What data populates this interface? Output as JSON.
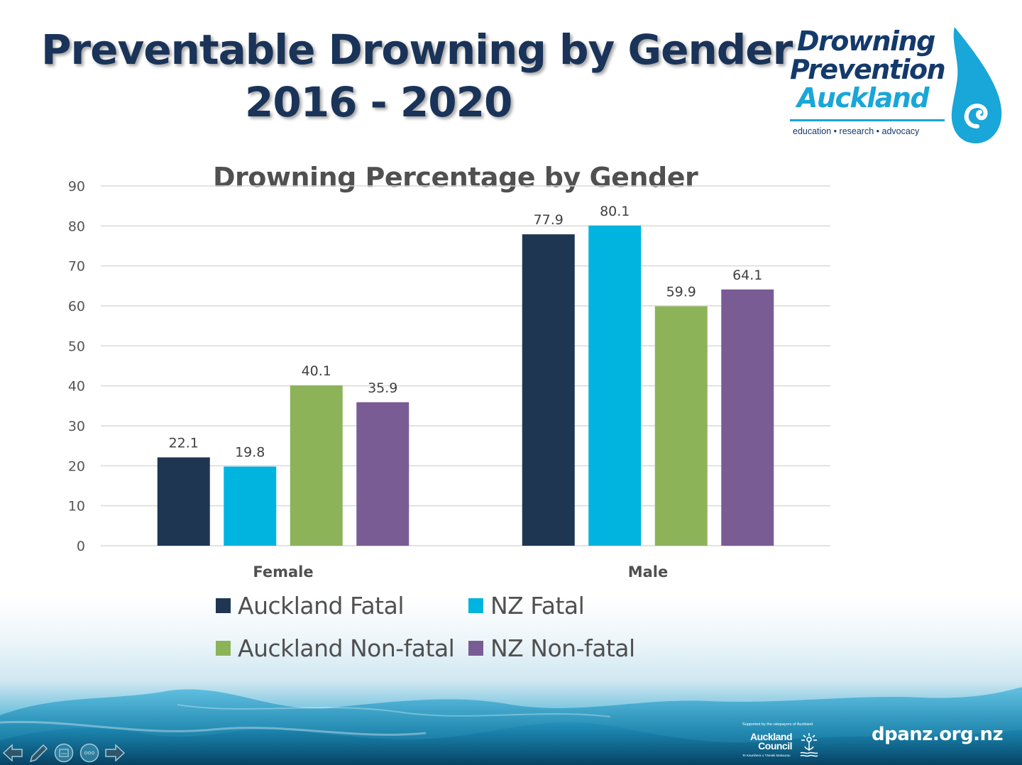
{
  "slide": {
    "title_line1": "Preventable Drowning by Gender",
    "title_line2": "2016 - 2020",
    "logo": {
      "line1": "Drowning",
      "line2": "Prevention",
      "line3": "Auckland",
      "tagline": "education • research • advocacy",
      "icon": "water-drop-icon"
    },
    "footer": {
      "council_support": "Supported by the ratepayers of Auckland",
      "council_name_1": "Auckland",
      "council_name_2": "Council",
      "council_sub": "Te Kaunihera o Tāmaki Makaurau",
      "url": "dpanz.org.nz"
    },
    "nav_controls": [
      {
        "name": "previous-slide",
        "icon": "arrow-left-icon"
      },
      {
        "name": "pen-tool",
        "icon": "pen-icon"
      },
      {
        "name": "slide-menu",
        "icon": "slides-icon"
      },
      {
        "name": "more-options",
        "icon": "ellipsis-icon"
      },
      {
        "name": "next-slide",
        "icon": "arrow-right-icon"
      }
    ]
  },
  "colors": {
    "title": "#1a3358",
    "auckland_fatal": "#1f3653",
    "nz_fatal": "#00b4e0",
    "auckland_nonfatal": "#8db359",
    "nz_nonfatal": "#7a5c95",
    "gridline": "#d9d9d9",
    "logo_dark": "#143a6b",
    "logo_light": "#19a6d8"
  },
  "chart_data": {
    "type": "bar",
    "title": "Drowning Percentage by Gender",
    "xlabel": "",
    "ylabel": "",
    "categories": [
      "Female",
      "Male"
    ],
    "series": [
      {
        "name": "Auckland Fatal",
        "color": "#1f3653",
        "values": [
          22.1,
          77.9
        ]
      },
      {
        "name": "NZ Fatal",
        "color": "#00b4e0",
        "values": [
          19.8,
          80.1
        ]
      },
      {
        "name": "Auckland Non-fatal",
        "color": "#8db359",
        "values": [
          40.1,
          59.9
        ]
      },
      {
        "name": "NZ Non-fatal",
        "color": "#7a5c95",
        "values": [
          35.9,
          64.1
        ]
      }
    ],
    "ylim": [
      0,
      90
    ],
    "yticks": [
      0,
      10,
      20,
      30,
      40,
      50,
      60,
      70,
      80,
      90
    ],
    "grid": true,
    "data_labels": true,
    "legend_position": "bottom"
  }
}
